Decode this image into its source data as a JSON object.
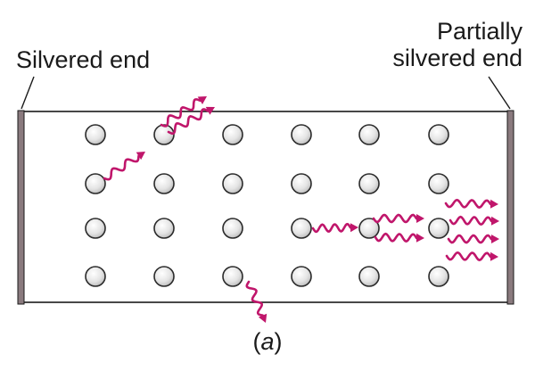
{
  "labels": {
    "left_mirror": "Silvered end",
    "right_mirror_line1": "Partially",
    "right_mirror_line2": "silvered end",
    "caption_open": "(",
    "caption_letter": "a",
    "caption_close": ")"
  },
  "colors": {
    "photon": "#c0166b",
    "atom_fill": "#e8e8e8",
    "atom_stroke": "#2a2a2a",
    "mirror": "#8a7a7e",
    "tube_stroke": "#1a1a1a"
  },
  "atom_grid": {
    "rows": 4,
    "columns": 6
  }
}
